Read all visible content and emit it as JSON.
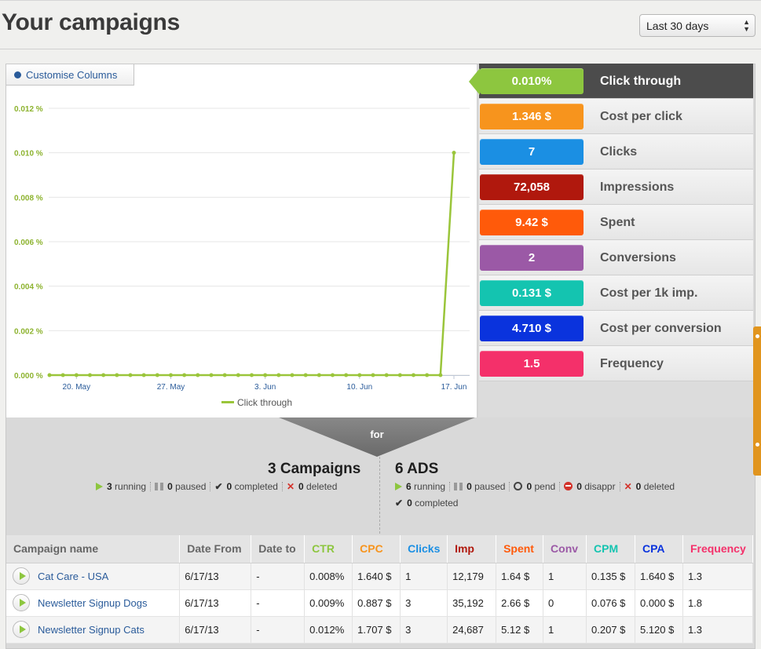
{
  "header": {
    "title": "Your campaigns",
    "date_range": {
      "selected": "Last 30 days"
    }
  },
  "toolbar": {
    "customise_label": "Customise Columns"
  },
  "chart_data": {
    "type": "line",
    "title": "",
    "xlabel": "",
    "ylabel": "",
    "y_ticks": [
      "0.000 %",
      "0.002 %",
      "0.004 %",
      "0.006 %",
      "0.008 %",
      "0.010 %",
      "0.012 %"
    ],
    "x_ticks": [
      "20. May",
      "27. May",
      "3. Jun",
      "10. Jun",
      "17. Jun"
    ],
    "ylim": [
      0,
      0.012
    ],
    "grid": true,
    "legend_position": "bottom",
    "series": [
      {
        "name": "Click through",
        "color": "#9ac53a",
        "x": [
          "2013-05-18",
          "2013-05-19",
          "2013-05-20",
          "2013-05-21",
          "2013-05-22",
          "2013-05-23",
          "2013-05-24",
          "2013-05-25",
          "2013-05-26",
          "2013-05-27",
          "2013-05-28",
          "2013-05-29",
          "2013-05-30",
          "2013-05-31",
          "2013-06-01",
          "2013-06-02",
          "2013-06-03",
          "2013-06-04",
          "2013-06-05",
          "2013-06-06",
          "2013-06-07",
          "2013-06-08",
          "2013-06-09",
          "2013-06-10",
          "2013-06-11",
          "2013-06-12",
          "2013-06-13",
          "2013-06-14",
          "2013-06-15",
          "2013-06-16",
          "2013-06-17"
        ],
        "values": [
          0,
          0,
          0,
          0,
          0,
          0,
          0,
          0,
          0,
          0,
          0,
          0,
          0,
          0,
          0,
          0,
          0,
          0,
          0,
          0,
          0,
          0,
          0,
          0,
          0,
          0,
          0,
          0,
          0,
          0,
          0.01
        ]
      }
    ]
  },
  "metrics": [
    {
      "value": "0.010%",
      "label": "Click through",
      "color": "#8dc63f",
      "active": true
    },
    {
      "value": "1.346 $",
      "label": "Cost per click",
      "color": "#f7941d",
      "active": false
    },
    {
      "value": "7",
      "label": "Clicks",
      "color": "#1b8fe3",
      "active": false
    },
    {
      "value": "72,058",
      "label": "Impressions",
      "color": "#b0180d",
      "active": false
    },
    {
      "value": "9.42 $",
      "label": "Spent",
      "color": "#ff5a0a",
      "active": false
    },
    {
      "value": "2",
      "label": "Conversions",
      "color": "#9b59a6",
      "active": false
    },
    {
      "value": "0.131 $",
      "label": "Cost per 1k imp.",
      "color": "#14c4b0",
      "active": false
    },
    {
      "value": "4.710 $",
      "label": "Cost per conversion",
      "color": "#0a33dd",
      "active": false
    },
    {
      "value": "1.5",
      "label": "Frequency",
      "color": "#f4306a",
      "active": false
    }
  ],
  "funnel": {
    "for_label": "for"
  },
  "campaigns_summary": {
    "title": "3 Campaigns",
    "running": "3",
    "running_label": "running",
    "paused": "0",
    "paused_label": "paused",
    "completed": "0",
    "completed_label": "completed",
    "deleted": "0",
    "deleted_label": "deleted"
  },
  "ads_summary": {
    "title": "6 ADS",
    "running": "6",
    "running_label": "running",
    "paused": "0",
    "paused_label": "paused",
    "pend": "0",
    "pend_label": "pend",
    "disappr": "0",
    "disappr_label": "disappr",
    "deleted": "0",
    "deleted_label": "deleted",
    "completed": "0",
    "completed_label": "completed"
  },
  "table": {
    "columns": [
      {
        "label": "Campaign name",
        "color": "#666666"
      },
      {
        "label": "Date From",
        "color": "#666666"
      },
      {
        "label": "Date to",
        "color": "#666666"
      },
      {
        "label": "CTR",
        "color": "#8dc63f"
      },
      {
        "label": "CPC",
        "color": "#f7941d"
      },
      {
        "label": "Clicks",
        "color": "#1b8fe3"
      },
      {
        "label": "Imp",
        "color": "#b0180d"
      },
      {
        "label": "Spent",
        "color": "#ff5a0a"
      },
      {
        "label": "Conv",
        "color": "#9b59a6"
      },
      {
        "label": "CPM",
        "color": "#14c4b0"
      },
      {
        "label": "CPA",
        "color": "#0a33dd"
      },
      {
        "label": "Frequency",
        "color": "#f4306a"
      }
    ],
    "rows": [
      [
        "Cat Care - USA",
        "6/17/13",
        "-",
        "0.008%",
        "1.640 $",
        "1",
        "12,179",
        "1.64 $",
        "1",
        "0.135 $",
        "1.640 $",
        "1.3"
      ],
      [
        "Newsletter Signup Dogs",
        "6/17/13",
        "-",
        "0.009%",
        "0.887 $",
        "3",
        "35,192",
        "2.66 $",
        "0",
        "0.076 $",
        "0.000 $",
        "1.8"
      ],
      [
        "Newsletter Signup Cats",
        "6/17/13",
        "-",
        "0.012%",
        "1.707 $",
        "3",
        "24,687",
        "5.12 $",
        "1",
        "0.207 $",
        "5.120 $",
        "1.3"
      ]
    ]
  }
}
